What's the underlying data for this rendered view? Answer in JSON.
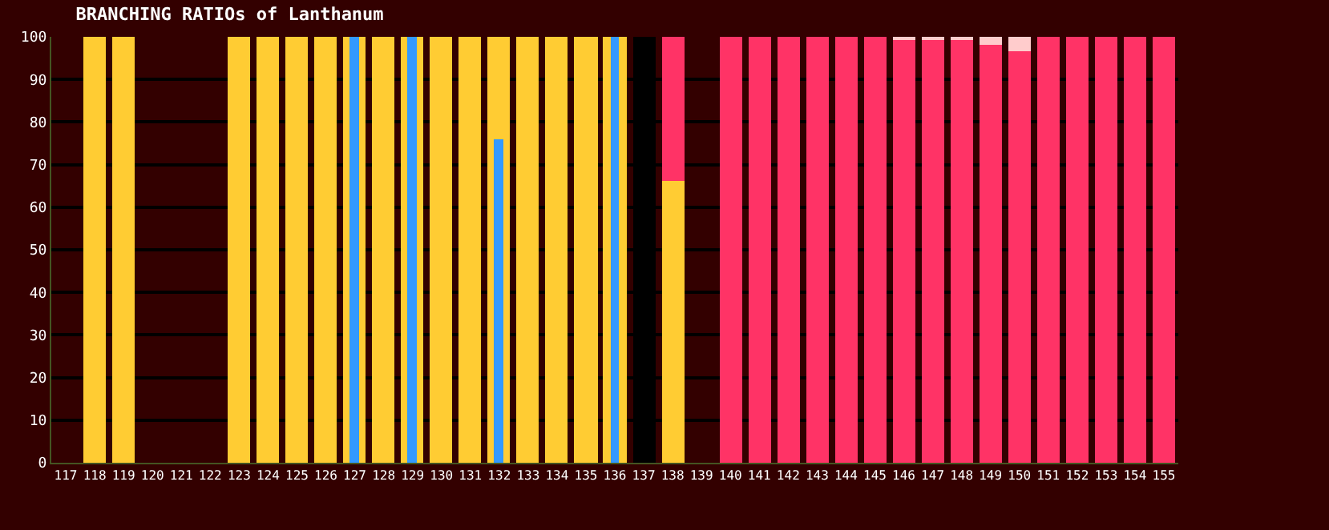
{
  "chart_data": {
    "type": "bar",
    "title": "BRANCHING RATIOs of Lanthanum",
    "categories": [
      "117",
      "118",
      "119",
      "120",
      "121",
      "122",
      "123",
      "124",
      "125",
      "126",
      "127",
      "128",
      "129",
      "130",
      "131",
      "132",
      "133",
      "134",
      "135",
      "136",
      "137",
      "138",
      "139",
      "140",
      "141",
      "142",
      "143",
      "144",
      "145",
      "146",
      "147",
      "148",
      "149",
      "150",
      "151",
      "152",
      "153",
      "154",
      "155"
    ],
    "series": [
      {
        "color": "#ffcc33",
        "values": [
          null,
          100,
          100,
          null,
          null,
          null,
          100,
          100,
          100,
          100,
          100,
          100,
          100,
          100,
          100,
          100,
          100,
          100,
          100,
          100,
          null,
          66,
          null,
          null,
          null,
          null,
          null,
          null,
          null,
          null,
          null,
          null,
          null,
          null,
          null,
          null,
          null,
          null,
          null
        ]
      },
      {
        "color": "#000000",
        "values": [
          null,
          null,
          null,
          null,
          null,
          null,
          null,
          null,
          null,
          null,
          null,
          null,
          null,
          null,
          null,
          null,
          null,
          null,
          null,
          null,
          100,
          null,
          null,
          null,
          null,
          null,
          null,
          null,
          null,
          null,
          null,
          null,
          null,
          null,
          null,
          null,
          null,
          null,
          null
        ]
      },
      {
        "color": "#ff3366",
        "base": [
          null,
          null,
          null,
          null,
          null,
          null,
          null,
          null,
          null,
          null,
          null,
          null,
          null,
          null,
          null,
          null,
          null,
          null,
          null,
          null,
          null,
          66,
          null,
          0,
          0,
          0,
          0,
          0,
          0,
          0,
          0,
          0,
          0,
          0,
          0,
          0,
          0,
          0,
          0
        ],
        "values": [
          null,
          null,
          null,
          null,
          null,
          null,
          null,
          null,
          null,
          null,
          null,
          null,
          null,
          null,
          null,
          null,
          null,
          null,
          null,
          null,
          null,
          34,
          null,
          100,
          100,
          100,
          100,
          100,
          100,
          99.5,
          99.5,
          99.5,
          98.2,
          96.7,
          100,
          100,
          100,
          100,
          100
        ]
      },
      {
        "color": "#ffcccc",
        "base": [
          null,
          null,
          null,
          null,
          null,
          null,
          null,
          null,
          null,
          null,
          null,
          null,
          null,
          null,
          null,
          null,
          null,
          null,
          null,
          null,
          null,
          null,
          null,
          null,
          null,
          null,
          null,
          null,
          null,
          99.5,
          99.5,
          99.5,
          98.2,
          96.7,
          null,
          null,
          null,
          null,
          null
        ],
        "values": [
          null,
          null,
          null,
          null,
          null,
          null,
          null,
          null,
          null,
          null,
          null,
          null,
          null,
          null,
          null,
          null,
          null,
          null,
          null,
          null,
          null,
          null,
          null,
          null,
          null,
          null,
          null,
          null,
          null,
          0.5,
          0.5,
          0.5,
          1.8,
          3.3,
          null,
          null,
          null,
          null,
          null
        ]
      },
      {
        "color": "#3399ff",
        "values": [
          null,
          null,
          null,
          null,
          null,
          null,
          null,
          null,
          null,
          null,
          100,
          null,
          100,
          null,
          null,
          76,
          null,
          null,
          null,
          100,
          null,
          null,
          null,
          null,
          null,
          null,
          null,
          null,
          null,
          null,
          null,
          null,
          null,
          null,
          null,
          null,
          null,
          null,
          null
        ]
      }
    ],
    "ylim": [
      0,
      100
    ],
    "yticks": [
      0,
      10,
      20,
      30,
      40,
      50,
      60,
      70,
      80,
      90,
      100
    ],
    "grid": "y"
  }
}
